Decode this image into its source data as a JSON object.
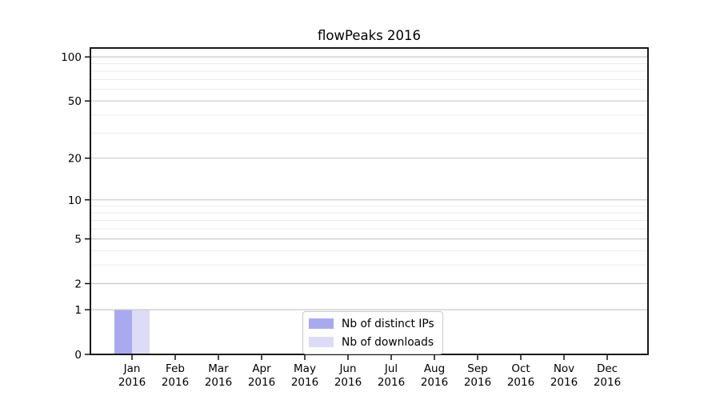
{
  "chart_data": {
    "type": "bar",
    "title": "flowPeaks 2016",
    "x": {
      "categories": [
        "Jan",
        "Feb",
        "Mar",
        "Apr",
        "May",
        "Jun",
        "Jul",
        "Aug",
        "Sep",
        "Oct",
        "Nov",
        "Dec"
      ],
      "year_label": "2016"
    },
    "series": [
      {
        "name": "Nb of distinct IPs",
        "color": "#a9a9f0",
        "values": [
          1,
          0,
          0,
          0,
          0,
          0,
          0,
          0,
          0,
          0,
          0,
          0
        ]
      },
      {
        "name": "Nb of downloads",
        "color": "#dcdcf6",
        "values": [
          1,
          0,
          0,
          0,
          0,
          0,
          0,
          0,
          0,
          0,
          0,
          0
        ]
      }
    ],
    "yaxis": {
      "scale": "log1p",
      "ylim": [
        0,
        115
      ],
      "major_ticks": [
        0,
        1,
        2,
        5,
        10,
        20,
        50,
        100
      ],
      "minor_gridlines": [
        3,
        4,
        6,
        7,
        8,
        9,
        30,
        40,
        60,
        70,
        80,
        90
      ]
    },
    "grid": {
      "orientation": "horizontal",
      "major_color": "#c8c8c8",
      "minor_color": "#ececec"
    },
    "legend": {
      "position": "lower center"
    },
    "axis_color": "#000000"
  }
}
